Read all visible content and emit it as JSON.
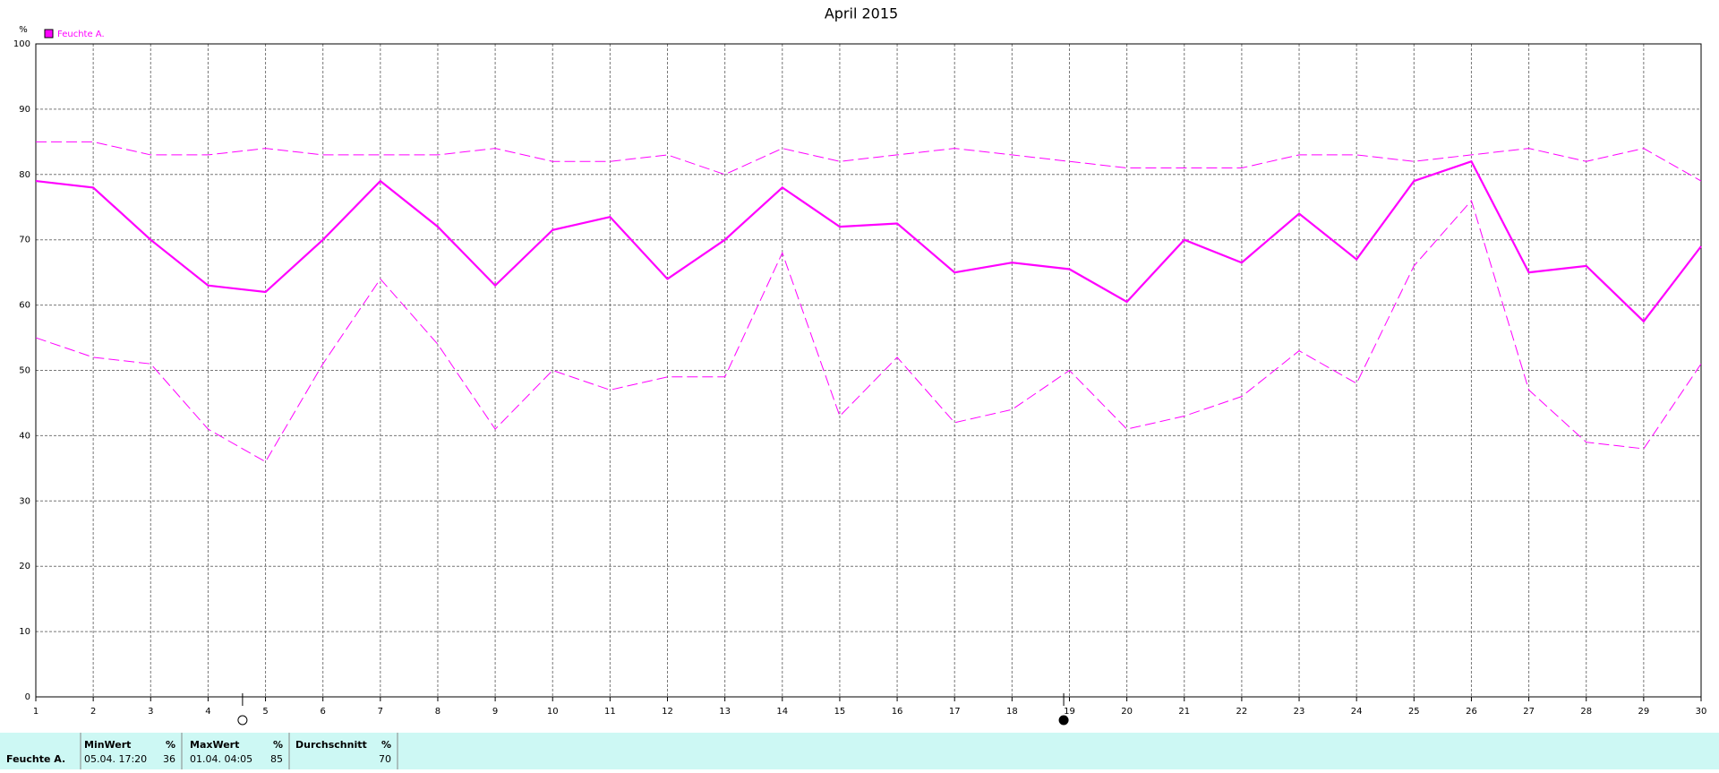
{
  "chart_data": {
    "type": "line",
    "title": "April 2015",
    "ylabel": "%",
    "categories": [
      "1",
      "2",
      "3",
      "4",
      "5",
      "6",
      "7",
      "8",
      "9",
      "10",
      "11",
      "12",
      "13",
      "14",
      "15",
      "16",
      "17",
      "18",
      "19",
      "20",
      "21",
      "22",
      "23",
      "24",
      "25",
      "26",
      "27",
      "28",
      "29",
      "30"
    ],
    "series": [
      {
        "name": "Feuchte A.",
        "color": "#ff00ff",
        "style": "solid",
        "values": [
          79,
          78,
          70,
          63,
          62,
          70,
          79,
          72,
          63,
          71.5,
          73.5,
          64,
          70,
          78,
          72,
          72.5,
          65,
          66.5,
          65.5,
          60.5,
          70,
          66.5,
          74,
          67,
          79,
          82,
          65,
          66,
          57.5,
          69
        ]
      },
      {
        "color": "#ff00ff",
        "style": "dashed",
        "values": [
          85,
          85,
          83,
          83,
          84,
          83,
          83,
          83,
          84,
          82,
          82,
          83,
          80,
          84,
          82,
          83,
          84,
          83,
          82,
          81,
          81,
          81,
          83,
          83,
          82,
          83,
          84,
          82,
          84,
          79
        ]
      },
      {
        "color": "#ff00ff",
        "style": "dashed",
        "values": [
          55,
          52,
          51,
          41,
          36,
          51,
          64,
          54,
          41,
          50,
          47,
          49,
          49,
          68,
          43,
          52,
          42,
          44,
          50,
          41,
          43,
          46,
          53,
          48,
          66,
          76,
          47,
          39,
          38,
          51
        ]
      }
    ],
    "ylim": [
      0,
      100
    ],
    "yticks": [
      0,
      10,
      20,
      30,
      40,
      50,
      60,
      70,
      80,
      90,
      100
    ],
    "grid": true,
    "legend": "top-left"
  },
  "table": {
    "row_label": "Feuchte A.",
    "columns": [
      {
        "header": "MinWert",
        "unit": "%",
        "time": "05.04. 17:20",
        "value": "36"
      },
      {
        "header": "MaxWert",
        "unit": "%",
        "time": "01.04. 04:05",
        "value": "85"
      },
      {
        "header": "Durchschnitt",
        "unit": "%",
        "value": "70"
      }
    ]
  }
}
